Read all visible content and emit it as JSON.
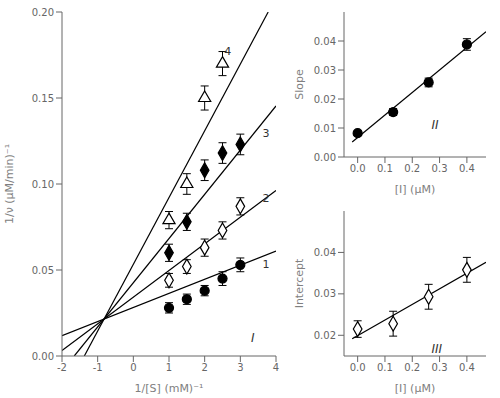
{
  "chart_data": [
    {
      "type": "scatter",
      "xlabel": "1/[S]  (mM)⁻¹",
      "ylabel": "1/ν (μM/min)⁻¹",
      "xlim": [
        -2,
        4
      ],
      "ylim": [
        0,
        0.2
      ],
      "xticks": [
        -2,
        -1,
        0,
        1,
        2,
        3,
        4
      ],
      "yticks": [
        {
          "value": 0,
          "label": "0.00"
        },
        0.05,
        {
          "value": 0.1,
          "label": "0.10"
        },
        0.15,
        {
          "value": 0.2,
          "label": "0.20"
        }
      ],
      "grid": false,
      "series": [
        {
          "type": "line",
          "color": "#000000",
          "x": [
            -2,
            4
          ],
          "values": [
            0.011824,
            0.061024
          ]
        },
        {
          "type": "line",
          "color": "#000000",
          "x": [
            -2,
            4
          ],
          "values": [
            0.00321,
            0.09621
          ]
        },
        {
          "type": "line",
          "color": "#000000",
          "x": [
            -1.656576,
            4
          ],
          "values": [
            0,
            0.145374
          ]
        },
        {
          "type": "line",
          "color": "#000000",
          "x": [
            -1.374124,
            3.780515
          ],
          "values": [
            0,
            0.2
          ]
        },
        {
          "type": "scatter",
          "marker": "circle",
          "color": "#000000",
          "x": [
            1.0,
            1.5,
            2.0,
            2.5,
            3.0
          ],
          "values": [
            0.028,
            0.033,
            0.038,
            0.045,
            0.053
          ],
          "yerr": [
            0.003,
            0.003,
            0.003,
            0.004,
            0.004
          ]
        },
        {
          "type": "scatter",
          "marker": "open-diamond",
          "color": "#000000",
          "x": [
            1.0,
            1.5,
            2.0,
            2.5,
            3.0
          ],
          "values": [
            0.044,
            0.052,
            0.063,
            0.073,
            0.087
          ],
          "yerr": [
            0.004,
            0.004,
            0.005,
            0.005,
            0.005
          ]
        },
        {
          "type": "scatter",
          "marker": "diamond",
          "color": "#000000",
          "x": [
            1.0,
            1.5,
            2.0,
            2.5,
            3.0
          ],
          "values": [
            0.06,
            0.078,
            0.108,
            0.118,
            0.123
          ],
          "yerr": [
            0.005,
            0.005,
            0.006,
            0.006,
            0.006
          ]
        },
        {
          "type": "scatter",
          "marker": "open-triangle",
          "color": "#000000",
          "x": [
            1.0,
            1.5,
            2.0,
            2.5
          ],
          "values": [
            0.079,
            0.1,
            0.15,
            0.17
          ],
          "yerr": [
            0.005,
            0.006,
            0.007,
            0.007
          ]
        }
      ],
      "annotations": [
        {
          "text": "1",
          "x": 3.62,
          "y": 0.053
        },
        {
          "text": "2",
          "x": 3.62,
          "y": 0.091
        },
        {
          "text": "3",
          "x": 3.62,
          "y": 0.129
        },
        {
          "text": "4",
          "x": 2.55,
          "y": 0.177
        },
        {
          "text": "I",
          "x": 3.3,
          "y": 0.01
        }
      ]
    },
    {
      "type": "scatter",
      "xlabel": "[I] (μM)",
      "ylabel": "Slope",
      "xlim": [
        -0.05,
        0.47
      ],
      "ylim": [
        0,
        0.05
      ],
      "xticks": [
        {
          "value": 0,
          "label": "0.0"
        },
        0.1,
        0.2,
        0.3,
        0.4
      ],
      "yticks": [
        {
          "value": 0,
          "label": "0.00"
        },
        0.01,
        0.02,
        0.03,
        0.04
      ],
      "grid": false,
      "series": [
        {
          "type": "line",
          "color": "#000000",
          "x": [
            -0.02,
            0.47
          ],
          "values": [
            0.0051485,
            0.0432254
          ]
        },
        {
          "type": "scatter",
          "marker": "circle",
          "color": "#000000",
          "x": [
            0.0,
            0.13,
            0.26,
            0.4
          ],
          "values": [
            0.0082,
            0.0155,
            0.0257,
            0.0388
          ],
          "yerr": [
            0.0008,
            0.0012,
            0.0015,
            0.002
          ]
        }
      ],
      "annotations": [
        {
          "text": "II",
          "x": 0.27,
          "y": 0.0107
        }
      ]
    },
    {
      "type": "scatter",
      "xlabel": "[I] (μM)",
      "ylabel": "Intercept",
      "xlim": [
        -0.05,
        0.47
      ],
      "ylim": [
        0.015,
        0.05
      ],
      "xticks": [
        {
          "value": 0,
          "label": "0.0"
        },
        0.1,
        0.2,
        0.3,
        0.4
      ],
      "yticks": [
        0.02,
        0.03,
        0.04
      ],
      "grid": false,
      "series": [
        {
          "type": "line",
          "color": "#000000",
          "x": [
            -0.02,
            0.47
          ],
          "values": [
            0.019156,
            0.037616
          ]
        },
        {
          "type": "scatter",
          "marker": "open-diamond",
          "color": "#000000",
          "x": [
            0.0,
            0.13,
            0.26,
            0.4
          ],
          "values": [
            0.0215,
            0.0228,
            0.0293,
            0.0358
          ],
          "yerr": [
            0.002,
            0.003,
            0.003,
            0.003
          ]
        }
      ],
      "annotations": [
        {
          "text": "III",
          "x": 0.27,
          "y": 0.0165
        }
      ]
    }
  ]
}
